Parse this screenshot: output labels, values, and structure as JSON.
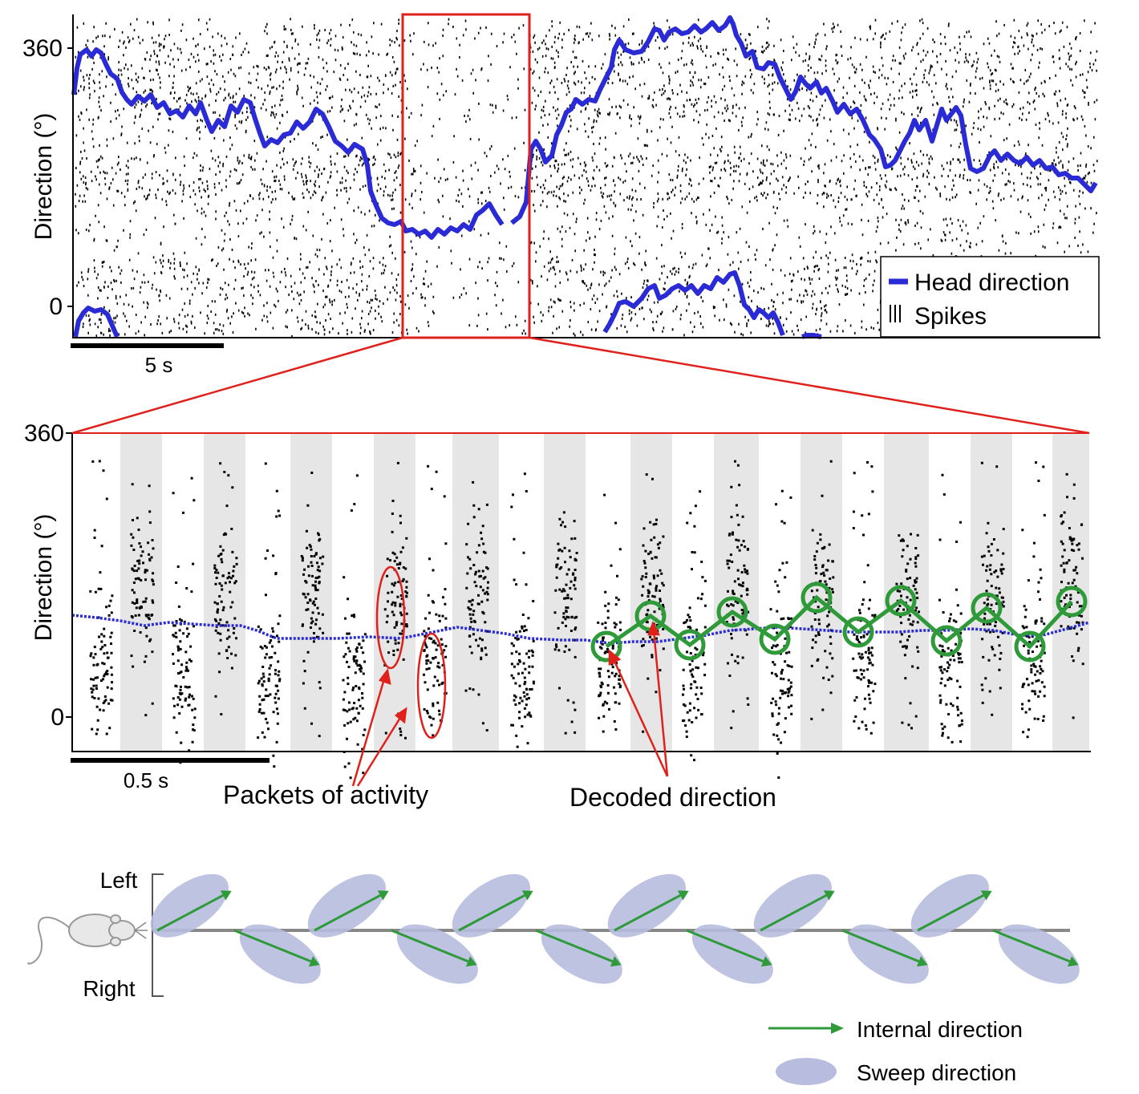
{
  "panel_a": {
    "y_label": "Direction (°)",
    "y_tick_top": "360",
    "y_tick_bottom": "0",
    "scale_label": "5 s",
    "legend": {
      "head_direction": "Head direction",
      "spikes": "Spikes"
    },
    "colors": {
      "head_direction": "#2b2bd6",
      "spikes": "#000000",
      "highlight": "#e0201b"
    }
  },
  "panel_b": {
    "y_label": "Direction (°)",
    "y_tick_top": "360",
    "y_tick_bottom": "0",
    "scale_label": "0.5 s",
    "annotation_packets": "Packets of activity",
    "annotation_decoded": "Decoded direction",
    "colors": {
      "shade": "#e6e6e6",
      "decoded": "#2e9a3a",
      "head_direction": "#2b2bd6"
    }
  },
  "panel_c": {
    "label_left": "Left",
    "label_right": "Right",
    "legend_internal": "Internal direction",
    "legend_sweep": "Sweep direction",
    "colors": {
      "arrow": "#2e9a3a",
      "sweep": "#b8bcdf",
      "axis": "#888888"
    }
  }
}
